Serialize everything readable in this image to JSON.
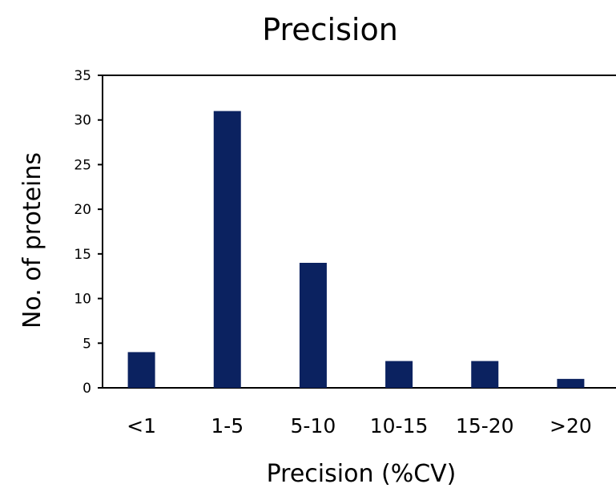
{
  "chart_data": {
    "type": "bar",
    "title": "Precision",
    "xlabel": "Precision (%CV)",
    "ylabel": "No. of proteins",
    "categories": [
      "<1",
      "1-5",
      "5-10",
      "10-15",
      "15-20",
      ">20"
    ],
    "values": [
      4,
      31,
      14,
      3,
      3,
      1
    ],
    "ylim": [
      0,
      35
    ],
    "yticks": [
      0,
      5,
      10,
      15,
      20,
      25,
      30,
      35
    ],
    "grid": false,
    "legend": "none",
    "bar_color": "#0b2260"
  }
}
